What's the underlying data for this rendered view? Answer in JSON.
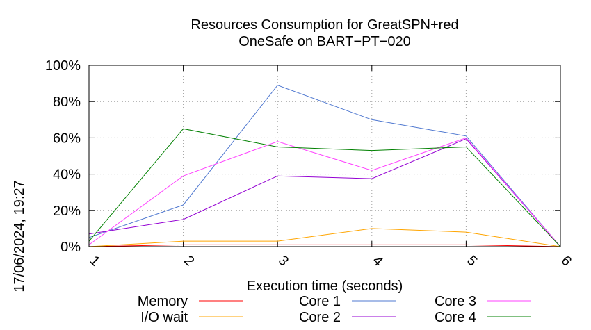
{
  "chart_data": {
    "type": "line",
    "title_line1": "Resources Consumption for GreatSPN+red",
    "title_line2": "OneSafe on BART−PT−020",
    "xlabel": "Execution time (seconds)",
    "ylabel": "",
    "side_label": "17/06/2024, 19:27",
    "x": [
      1,
      2,
      3,
      4,
      5,
      6
    ],
    "x_tick_labels": [
      "1",
      "2",
      "3",
      "4",
      "5",
      "6"
    ],
    "y_tick_labels": [
      "0%",
      "20%",
      "40%",
      "60%",
      "80%",
      "100%"
    ],
    "xlim": [
      1,
      6
    ],
    "ylim": [
      0,
      100
    ],
    "grid": true,
    "legend_position": "bottom",
    "series": [
      {
        "name": "Memory",
        "color": "#ff0000",
        "values": [
          0,
          1,
          1,
          1,
          1,
          0
        ]
      },
      {
        "name": "I/O wait",
        "color": "#ffa500",
        "values": [
          0,
          3,
          3,
          10,
          8,
          0
        ]
      },
      {
        "name": "Core 1",
        "color": "#4f78d0",
        "values": [
          5,
          23,
          89,
          70,
          61,
          0
        ]
      },
      {
        "name": "Core 2",
        "color": "#9400d3",
        "values": [
          7,
          15,
          39,
          37.5,
          59.5,
          0
        ]
      },
      {
        "name": "Core 3",
        "color": "#ff40ff",
        "values": [
          1,
          39,
          58,
          42,
          60,
          0
        ]
      },
      {
        "name": "Core 4",
        "color": "#008000",
        "values": [
          3,
          65,
          55,
          53,
          55,
          0
        ]
      }
    ]
  }
}
